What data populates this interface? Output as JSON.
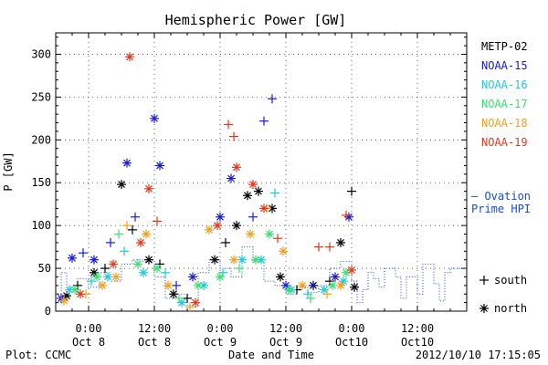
{
  "chart_data": {
    "type": "scatter",
    "title": "Hemispheric Power [GW]",
    "xlabel": "Date and Time",
    "ylabel": "P [GW]",
    "ylim": [
      0,
      325
    ],
    "xlim": [
      "2012-10-07 18:00",
      "2012-10-10 21:00"
    ],
    "y_ticks": [
      0,
      50,
      100,
      150,
      200,
      250,
      300
    ],
    "x_ticks": [
      {
        "at": "2012-10-08 00:00",
        "label": "0:00",
        "sublabel": "Oct 8"
      },
      {
        "at": "2012-10-08 12:00",
        "label": "12:00",
        "sublabel": "Oct 8"
      },
      {
        "at": "2012-10-09 00:00",
        "label": "0:00",
        "sublabel": "Oct 9"
      },
      {
        "at": "2012-10-09 12:00",
        "label": "12:00",
        "sublabel": "Oct 9"
      },
      {
        "at": "2012-10-10 00:00",
        "label": "0:00",
        "sublabel": "Oct10"
      },
      {
        "at": "2012-10-10 12:00",
        "label": "12:00",
        "sublabel": "Oct10"
      }
    ],
    "grid": true,
    "legend_position": "right",
    "marker_legend": {
      "south": "south",
      "north": "north"
    },
    "series": [
      {
        "name": "METP-02",
        "color": "#000000",
        "points": [
          [
            "2012-10-07 20:00",
            18,
            "north"
          ],
          [
            "2012-10-07 22:00",
            30,
            "south"
          ],
          [
            "2012-10-08 01:00",
            45,
            "north"
          ],
          [
            "2012-10-08 03:00",
            50,
            "south"
          ],
          [
            "2012-10-08 06:00",
            148,
            "north"
          ],
          [
            "2012-10-08 08:00",
            95,
            "south"
          ],
          [
            "2012-10-08 11:00",
            60,
            "north"
          ],
          [
            "2012-10-08 13:00",
            55,
            "south"
          ],
          [
            "2012-10-08 15:30",
            20,
            "north"
          ],
          [
            "2012-10-08 18:00",
            15,
            "south"
          ],
          [
            "2012-10-08 23:00",
            60,
            "north"
          ],
          [
            "2012-10-09 01:00",
            80,
            "south"
          ],
          [
            "2012-10-09 03:00",
            100,
            "north"
          ],
          [
            "2012-10-09 05:00",
            135,
            "north"
          ],
          [
            "2012-10-09 07:00",
            140,
            "north"
          ],
          [
            "2012-10-09 09:30",
            120,
            "north"
          ],
          [
            "2012-10-09 11:00",
            40,
            "north"
          ],
          [
            "2012-10-09 14:00",
            25,
            "south"
          ],
          [
            "2012-10-09 17:00",
            30,
            "north"
          ],
          [
            "2012-10-09 20:00",
            35,
            "south"
          ],
          [
            "2012-10-09 22:00",
            80,
            "north"
          ],
          [
            "2012-10-10 00:00",
            140,
            "south"
          ],
          [
            "2012-10-10 00:30",
            28,
            "north"
          ]
        ]
      },
      {
        "name": "NOAA-15",
        "color": "#1a1ad6",
        "points": [
          [
            "2012-10-07 19:00",
            15,
            "north"
          ],
          [
            "2012-10-07 21:00",
            62,
            "north"
          ],
          [
            "2012-10-07 23:00",
            68,
            "south"
          ],
          [
            "2012-10-08 01:00",
            60,
            "north"
          ],
          [
            "2012-10-08 04:00",
            80,
            "south"
          ],
          [
            "2012-10-08 07:00",
            173,
            "north"
          ],
          [
            "2012-10-08 08:30",
            110,
            "south"
          ],
          [
            "2012-10-08 12:00",
            225,
            "north"
          ],
          [
            "2012-10-08 13:00",
            170,
            "north"
          ],
          [
            "2012-10-08 16:00",
            30,
            "south"
          ],
          [
            "2012-10-08 19:00",
            40,
            "north"
          ],
          [
            "2012-10-09 00:00",
            110,
            "north"
          ],
          [
            "2012-10-09 02:00",
            155,
            "north"
          ],
          [
            "2012-10-09 06:00",
            110,
            "south"
          ],
          [
            "2012-10-09 08:00",
            222,
            "south"
          ],
          [
            "2012-10-09 09:30",
            248,
            "south"
          ],
          [
            "2012-10-09 12:00",
            30,
            "north"
          ],
          [
            "2012-10-09 17:00",
            30,
            "south"
          ],
          [
            "2012-10-09 21:00",
            40,
            "north"
          ],
          [
            "2012-10-09 23:30",
            110,
            "north"
          ]
        ]
      },
      {
        "name": "NOAA-16",
        "color": "#1ec8e0",
        "points": [
          [
            "2012-10-07 20:30",
            25,
            "north"
          ],
          [
            "2012-10-08 00:30",
            35,
            "south"
          ],
          [
            "2012-10-08 03:30",
            40,
            "north"
          ],
          [
            "2012-10-08 06:30",
            70,
            "south"
          ],
          [
            "2012-10-08 10:00",
            45,
            "north"
          ],
          [
            "2012-10-08 14:00",
            45,
            "south"
          ],
          [
            "2012-10-08 17:00",
            10,
            "north"
          ],
          [
            "2012-10-08 21:00",
            30,
            "north"
          ],
          [
            "2012-10-09 00:30",
            45,
            "south"
          ],
          [
            "2012-10-09 04:00",
            60,
            "north"
          ],
          [
            "2012-10-09 07:30",
            60,
            "north"
          ],
          [
            "2012-10-09 10:00",
            138,
            "south"
          ],
          [
            "2012-10-09 13:00",
            25,
            "north"
          ],
          [
            "2012-10-09 16:00",
            20,
            "south"
          ],
          [
            "2012-10-09 19:00",
            25,
            "north"
          ],
          [
            "2012-10-09 22:30",
            35,
            "north"
          ]
        ]
      },
      {
        "name": "NOAA-17",
        "color": "#3ce070",
        "points": [
          [
            "2012-10-07 21:30",
            25,
            "north"
          ],
          [
            "2012-10-08 01:30",
            40,
            "north"
          ],
          [
            "2012-10-08 05:30",
            90,
            "south"
          ],
          [
            "2012-10-08 09:00",
            55,
            "north"
          ],
          [
            "2012-10-08 12:30",
            50,
            "north"
          ],
          [
            "2012-10-08 16:30",
            15,
            "south"
          ],
          [
            "2012-10-08 20:00",
            30,
            "north"
          ],
          [
            "2012-10-09 00:00",
            40,
            "north"
          ],
          [
            "2012-10-09 03:30",
            50,
            "south"
          ],
          [
            "2012-10-09 06:30",
            60,
            "north"
          ],
          [
            "2012-10-09 09:00",
            90,
            "north"
          ],
          [
            "2012-10-09 12:30",
            25,
            "north"
          ],
          [
            "2012-10-09 16:30",
            15,
            "south"
          ],
          [
            "2012-10-09 20:30",
            30,
            "north"
          ],
          [
            "2012-10-09 23:00",
            45,
            "north"
          ]
        ]
      },
      {
        "name": "NOAA-18",
        "color": "#f0a020",
        "points": [
          [
            "2012-10-07 19:30",
            12,
            "north"
          ],
          [
            "2012-10-07 23:30",
            20,
            "south"
          ],
          [
            "2012-10-08 02:30",
            30,
            "north"
          ],
          [
            "2012-10-08 05:00",
            40,
            "north"
          ],
          [
            "2012-10-08 07:00",
            100,
            "south"
          ],
          [
            "2012-10-08 10:30",
            90,
            "north"
          ],
          [
            "2012-10-08 14:30",
            30,
            "north"
          ],
          [
            "2012-10-08 18:30",
            5,
            "south"
          ],
          [
            "2012-10-08 22:00",
            95,
            "north"
          ],
          [
            "2012-10-09 02:30",
            60,
            "north"
          ],
          [
            "2012-10-09 05:30",
            90,
            "north"
          ],
          [
            "2012-10-09 08:30",
            120,
            "south"
          ],
          [
            "2012-10-09 11:30",
            70,
            "north"
          ],
          [
            "2012-10-09 15:00",
            30,
            "north"
          ],
          [
            "2012-10-09 19:30",
            20,
            "south"
          ],
          [
            "2012-10-09 22:00",
            30,
            "north"
          ]
        ]
      },
      {
        "name": "NOAA-19",
        "color": "#e03a1e",
        "points": [
          [
            "2012-10-07 22:30",
            20,
            "north"
          ],
          [
            "2012-10-08 04:30",
            55,
            "north"
          ],
          [
            "2012-10-08 07:30",
            297,
            "north"
          ],
          [
            "2012-10-08 09:30",
            80,
            "north"
          ],
          [
            "2012-10-08 11:00",
            143,
            "north"
          ],
          [
            "2012-10-08 12:30",
            105,
            "south"
          ],
          [
            "2012-10-08 19:30",
            10,
            "north"
          ],
          [
            "2012-10-08 23:30",
            100,
            "north"
          ],
          [
            "2012-10-09 01:30",
            218,
            "south"
          ],
          [
            "2012-10-09 02:30",
            204,
            "south"
          ],
          [
            "2012-10-09 03:00",
            168,
            "north"
          ],
          [
            "2012-10-09 06:00",
            148,
            "north"
          ],
          [
            "2012-10-09 08:00",
            120,
            "north"
          ],
          [
            "2012-10-09 10:30",
            85,
            "south"
          ],
          [
            "2012-10-09 18:00",
            75,
            "south"
          ],
          [
            "2012-10-09 20:00",
            75,
            "south"
          ],
          [
            "2012-10-09 23:00",
            112,
            "south"
          ],
          [
            "2012-10-10 00:00",
            48,
            "north"
          ]
        ]
      }
    ],
    "ovation": {
      "name": "– Ovation\nPrime HPI",
      "label_lines": [
        "– Ovation",
        "Prime HPI"
      ],
      "color": "#1a4ec8",
      "steps": [
        [
          "2012-10-07 18:00",
          20
        ],
        [
          "2012-10-07 19:00",
          45
        ],
        [
          "2012-10-07 20:00",
          25
        ],
        [
          "2012-10-07 22:00",
          38
        ],
        [
          "2012-10-08 00:00",
          28
        ],
        [
          "2012-10-08 02:00",
          45
        ],
        [
          "2012-10-08 04:00",
          35
        ],
        [
          "2012-10-08 06:00",
          55
        ],
        [
          "2012-10-08 08:00",
          60
        ],
        [
          "2012-10-08 10:00",
          58
        ],
        [
          "2012-10-08 12:00",
          40
        ],
        [
          "2012-10-08 14:00",
          15
        ],
        [
          "2012-10-08 16:00",
          20
        ],
        [
          "2012-10-08 18:00",
          5
        ],
        [
          "2012-10-08 20:00",
          45
        ],
        [
          "2012-10-08 22:00",
          60
        ],
        [
          "2012-10-09 00:00",
          50
        ],
        [
          "2012-10-09 02:00",
          40
        ],
        [
          "2012-10-09 04:00",
          75
        ],
        [
          "2012-10-09 06:00",
          58
        ],
        [
          "2012-10-09 08:00",
          35
        ],
        [
          "2012-10-09 10:00",
          30
        ],
        [
          "2012-10-09 12:00",
          20
        ],
        [
          "2012-10-09 14:00",
          28
        ],
        [
          "2012-10-09 16:00",
          22
        ],
        [
          "2012-10-09 18:00",
          30
        ],
        [
          "2012-10-09 20:00",
          50
        ],
        [
          "2012-10-09 22:00",
          58
        ],
        [
          "2012-10-10 00:00",
          35
        ],
        [
          "2012-10-10 01:00",
          10
        ],
        [
          "2012-10-10 02:00",
          25
        ],
        [
          "2012-10-10 03:00",
          45
        ],
        [
          "2012-10-10 04:00",
          38
        ],
        [
          "2012-10-10 05:00",
          28
        ],
        [
          "2012-10-10 06:00",
          50
        ],
        [
          "2012-10-10 08:00",
          40
        ],
        [
          "2012-10-10 09:00",
          15
        ],
        [
          "2012-10-10 10:00",
          40
        ],
        [
          "2012-10-10 12:00",
          20
        ],
        [
          "2012-10-10 13:00",
          55
        ],
        [
          "2012-10-10 15:00",
          32
        ],
        [
          "2012-10-10 16:00",
          12
        ],
        [
          "2012-10-10 17:00",
          45
        ],
        [
          "2012-10-10 18:00",
          50
        ]
      ]
    }
  },
  "footer": {
    "plot_credit": "Plot: CCMC",
    "timestamp": "2012/10/10 17:15:05"
  }
}
